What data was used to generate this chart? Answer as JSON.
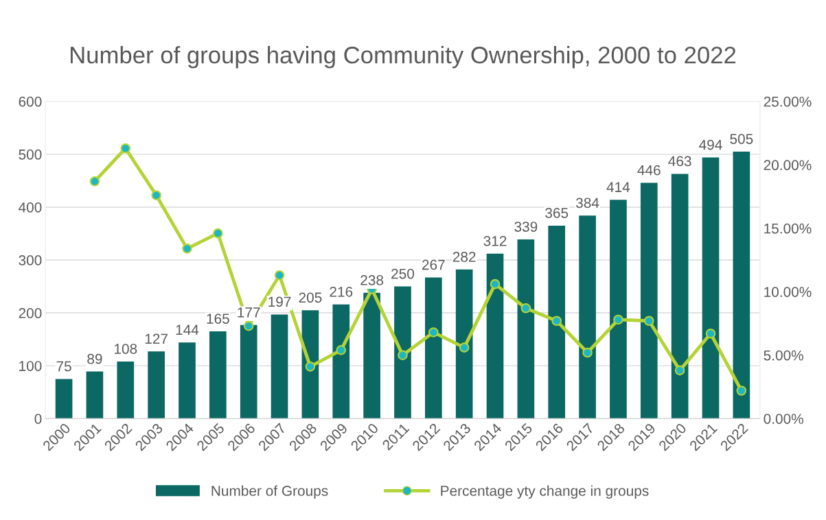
{
  "chart_data": {
    "type": "bar",
    "title": "Number of groups having Community Ownership, 2000 to 2022",
    "categories": [
      "2000",
      "2001",
      "2002",
      "2003",
      "2004",
      "2005",
      "2006",
      "2007",
      "2008",
      "2009",
      "2010",
      "2011",
      "2012",
      "2013",
      "2014",
      "2015",
      "2016",
      "2017",
      "2018",
      "2019",
      "2020",
      "2021",
      "2022"
    ],
    "series": [
      {
        "name": "Number of Groups",
        "color": "#0b6862",
        "values": [
          75,
          89,
          108,
          127,
          144,
          165,
          177,
          197,
          205,
          216,
          238,
          250,
          267,
          282,
          312,
          339,
          365,
          384,
          414,
          446,
          463,
          494,
          505
        ],
        "value_labels": [
          "75",
          "89",
          "108",
          "127",
          "144",
          "165",
          "177",
          "197",
          "205",
          "216",
          "238",
          "250",
          "267",
          "282",
          "312",
          "339",
          "365",
          "384",
          "414",
          "446",
          "463",
          "494",
          "505"
        ]
      },
      {
        "name": "Percentage yty change in groups",
        "type": "line",
        "axis": "y2",
        "color": "#b4d335",
        "marker": "circle",
        "values": [
          null,
          18.7,
          21.3,
          17.6,
          13.4,
          14.6,
          7.3,
          11.3,
          4.1,
          5.4,
          10.2,
          5.0,
          6.8,
          5.6,
          10.6,
          8.7,
          7.7,
          5.2,
          7.8,
          7.7,
          3.8,
          6.7,
          2.2
        ]
      }
    ],
    "ylim": [
      0,
      600
    ],
    "yticks": [
      0,
      100,
      200,
      300,
      400,
      500,
      600
    ],
    "y2lim": [
      0,
      25
    ],
    "y2ticks": [
      {
        "value": 0,
        "label": "0.00%"
      },
      {
        "value": 5,
        "label": "5.00%"
      },
      {
        "value": 10,
        "label": "10.00%"
      },
      {
        "value": 15,
        "label": "15.00%"
      },
      {
        "value": 20,
        "label": "20.00%"
      },
      {
        "value": 25,
        "label": "25.00%"
      }
    ],
    "grid": "y",
    "legend": "bottom"
  }
}
